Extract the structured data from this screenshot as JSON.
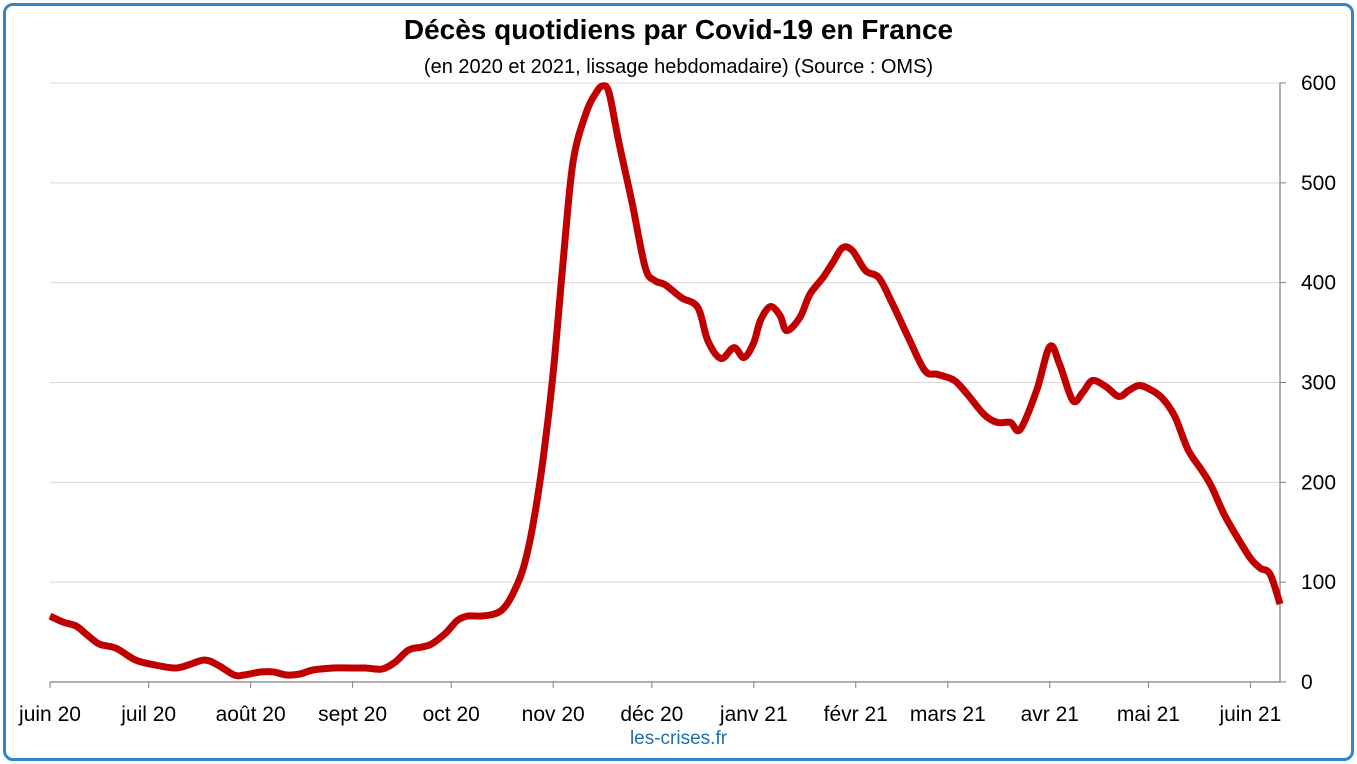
{
  "title": "Décès quotidiens par Covid-19 en France",
  "subtitle": "(en 2020 et 2021, lissage hebdomadaire) (Source : OMS)",
  "source_label": "les-crises.fr",
  "colors": {
    "frame": "#2f86c8",
    "line": "#c00000",
    "grid": "#d9d9d9",
    "axis": "#7f7f7f",
    "source": "#1f6fb3"
  },
  "chart_data": {
    "type": "line",
    "title": "Décès quotidiens par Covid-19 en France",
    "subtitle": "(en 2020 et 2021, lissage hebdomadaire) (Source : OMS)",
    "xlabel": "",
    "ylabel": "",
    "x_type": "date",
    "x_range": [
      "2020-06-01",
      "2021-06-10"
    ],
    "ylim": [
      0,
      600
    ],
    "y_ticks": [
      0,
      100,
      200,
      300,
      400,
      500,
      600
    ],
    "y_axis_position": "right",
    "grid": true,
    "legend": "none",
    "x_ticks": [
      {
        "date": "2020-06-01",
        "label": "juin 20"
      },
      {
        "date": "2020-07-01",
        "label": "juil 20"
      },
      {
        "date": "2020-08-01",
        "label": "août 20"
      },
      {
        "date": "2020-09-01",
        "label": "sept 20"
      },
      {
        "date": "2020-10-01",
        "label": "oct 20"
      },
      {
        "date": "2020-11-01",
        "label": "nov 20"
      },
      {
        "date": "2020-12-01",
        "label": "déc 20"
      },
      {
        "date": "2021-01-01",
        "label": "janv 21"
      },
      {
        "date": "2021-02-01",
        "label": "févr 21"
      },
      {
        "date": "2021-03-01",
        "label": "mars 21"
      },
      {
        "date": "2021-04-01",
        "label": "avr 21"
      },
      {
        "date": "2021-05-01",
        "label": "mai 21"
      },
      {
        "date": "2021-06-01",
        "label": "juin 21"
      }
    ],
    "series": [
      {
        "color": "#c00000",
        "points": [
          [
            "2020-06-01",
            66
          ],
          [
            "2020-06-05",
            60
          ],
          [
            "2020-06-09",
            56
          ],
          [
            "2020-06-12",
            48
          ],
          [
            "2020-06-16",
            38
          ],
          [
            "2020-06-21",
            34
          ],
          [
            "2020-06-27",
            22
          ],
          [
            "2020-07-03",
            17
          ],
          [
            "2020-07-09",
            14
          ],
          [
            "2020-07-13",
            17
          ],
          [
            "2020-07-18",
            22
          ],
          [
            "2020-07-22",
            17
          ],
          [
            "2020-07-27",
            7
          ],
          [
            "2020-07-30",
            7
          ],
          [
            "2020-08-04",
            10
          ],
          [
            "2020-08-08",
            10
          ],
          [
            "2020-08-12",
            7
          ],
          [
            "2020-08-16",
            8
          ],
          [
            "2020-08-20",
            12
          ],
          [
            "2020-08-26",
            14
          ],
          [
            "2020-08-31",
            14
          ],
          [
            "2020-09-05",
            14
          ],
          [
            "2020-09-10",
            13
          ],
          [
            "2020-09-14",
            20
          ],
          [
            "2020-09-18",
            32
          ],
          [
            "2020-09-22",
            35
          ],
          [
            "2020-09-25",
            38
          ],
          [
            "2020-09-29",
            48
          ],
          [
            "2020-10-01",
            55
          ],
          [
            "2020-10-03",
            62
          ],
          [
            "2020-10-06",
            66
          ],
          [
            "2020-10-10",
            66
          ],
          [
            "2020-10-14",
            68
          ],
          [
            "2020-10-17",
            74
          ],
          [
            "2020-10-20",
            90
          ],
          [
            "2020-10-23",
            115
          ],
          [
            "2020-10-26",
            160
          ],
          [
            "2020-10-29",
            225
          ],
          [
            "2020-11-01",
            310
          ],
          [
            "2020-11-04",
            420
          ],
          [
            "2020-11-07",
            520
          ],
          [
            "2020-11-11",
            570
          ],
          [
            "2020-11-14",
            590
          ],
          [
            "2020-11-16",
            597
          ],
          [
            "2020-11-18",
            590
          ],
          [
            "2020-11-21",
            540
          ],
          [
            "2020-11-25",
            480
          ],
          [
            "2020-11-29",
            415
          ],
          [
            "2020-12-02",
            402
          ],
          [
            "2020-12-05",
            398
          ],
          [
            "2020-12-10",
            385
          ],
          [
            "2020-12-15",
            375
          ],
          [
            "2020-12-18",
            342
          ],
          [
            "2020-12-22",
            324
          ],
          [
            "2020-12-26",
            335
          ],
          [
            "2020-12-29",
            325
          ],
          [
            "2021-01-01",
            340
          ],
          [
            "2021-01-03",
            362
          ],
          [
            "2021-01-06",
            376
          ],
          [
            "2021-01-09",
            367
          ],
          [
            "2021-01-11",
            352
          ],
          [
            "2021-01-15",
            365
          ],
          [
            "2021-01-18",
            388
          ],
          [
            "2021-01-22",
            405
          ],
          [
            "2021-01-25",
            420
          ],
          [
            "2021-01-28",
            435
          ],
          [
            "2021-01-31",
            432
          ],
          [
            "2021-02-04",
            412
          ],
          [
            "2021-02-08",
            405
          ],
          [
            "2021-02-12",
            380
          ],
          [
            "2021-02-17",
            345
          ],
          [
            "2021-02-22",
            312
          ],
          [
            "2021-02-26",
            308
          ],
          [
            "2021-03-03",
            302
          ],
          [
            "2021-03-07",
            288
          ],
          [
            "2021-03-12",
            268
          ],
          [
            "2021-03-16",
            260
          ],
          [
            "2021-03-20",
            260
          ],
          [
            "2021-03-23",
            253
          ],
          [
            "2021-03-28",
            292
          ],
          [
            "2021-04-01",
            336
          ],
          [
            "2021-04-04",
            318
          ],
          [
            "2021-04-08",
            282
          ],
          [
            "2021-04-11",
            290
          ],
          [
            "2021-04-14",
            302
          ],
          [
            "2021-04-18",
            296
          ],
          [
            "2021-04-22",
            286
          ],
          [
            "2021-04-25",
            292
          ],
          [
            "2021-04-28",
            297
          ],
          [
            "2021-05-01",
            294
          ],
          [
            "2021-05-05",
            285
          ],
          [
            "2021-05-09",
            266
          ],
          [
            "2021-05-13",
            233
          ],
          [
            "2021-05-17",
            213
          ],
          [
            "2021-05-20",
            197
          ],
          [
            "2021-05-24",
            168
          ],
          [
            "2021-05-28",
            145
          ],
          [
            "2021-06-01",
            124
          ],
          [
            "2021-06-04",
            114
          ],
          [
            "2021-06-07",
            108
          ],
          [
            "2021-06-10",
            78
          ]
        ]
      }
    ]
  }
}
